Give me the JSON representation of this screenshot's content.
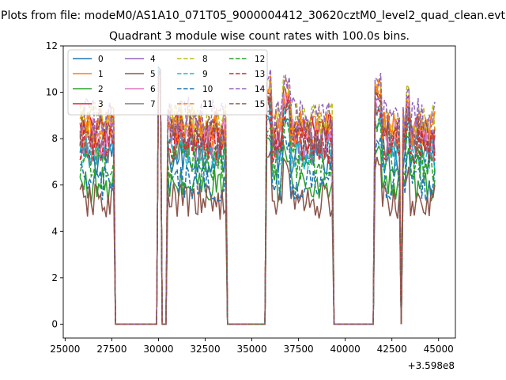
{
  "chart_data": {
    "type": "line",
    "suptitle": "Plots from file: modeM0/AS1A10_071T05_9000004412_30620cztM0_level2_quad_clean.evt",
    "title": "Quadrant 3 module wise count rates with 100.0s bins.",
    "xlabel": "",
    "ylabel": "",
    "x_offset_label": "+3.598e8",
    "xlim": [
      24900,
      45900
    ],
    "ylim": [
      -0.6,
      12
    ],
    "xticks": [
      25000,
      27500,
      30000,
      32500,
      35000,
      37500,
      40000,
      42500,
      45000
    ],
    "xtick_labels": [
      "25000",
      "27500",
      "30000",
      "32500",
      "35000",
      "37500",
      "40000",
      "42500",
      "45000"
    ],
    "yticks": [
      0,
      2,
      4,
      6,
      8,
      10,
      12
    ],
    "ytick_labels": [
      "0",
      "2",
      "4",
      "6",
      "8",
      "10",
      "12"
    ],
    "grid": false,
    "legend_position": "top-left",
    "legend_columns": 4,
    "bin_width_s": 100.0,
    "segments": [
      {
        "start": 25800,
        "end": 27600
      },
      {
        "start": 30000,
        "end": 30100
      },
      {
        "start": 30500,
        "end": 33600
      },
      {
        "start": 35800,
        "end": 36700
      },
      {
        "start": 36800,
        "end": 39300
      },
      {
        "start": 41600,
        "end": 42900
      },
      {
        "start": 43100,
        "end": 43200
      },
      {
        "start": 43300,
        "end": 44800
      }
    ],
    "series": [
      {
        "name": "0",
        "color": "#1f77b4",
        "dash": "solid",
        "level": 7.2
      },
      {
        "name": "1",
        "color": "#ff7f0e",
        "dash": "solid",
        "level": 8.6
      },
      {
        "name": "2",
        "color": "#2ca02c",
        "dash": "solid",
        "level": 6.0
      },
      {
        "name": "3",
        "color": "#d62728",
        "dash": "solid",
        "level": 8.3
      },
      {
        "name": "4",
        "color": "#9467bd",
        "dash": "solid",
        "level": 7.9
      },
      {
        "name": "5",
        "color": "#8c564b",
        "dash": "solid",
        "level": 5.3
      },
      {
        "name": "6",
        "color": "#e377c2",
        "dash": "solid",
        "level": 8.1
      },
      {
        "name": "7",
        "color": "#7f7f7f",
        "dash": "solid",
        "level": 7.6
      },
      {
        "name": "8",
        "color": "#bcbd22",
        "dash": "dashed",
        "level": 8.8
      },
      {
        "name": "9",
        "color": "#17becf",
        "dash": "dashed",
        "level": 7.4
      },
      {
        "name": "10",
        "color": "#1f77b4",
        "dash": "dashed",
        "level": 6.1
      },
      {
        "name": "11",
        "color": "#ff7f0e",
        "dash": "dashed",
        "level": 8.4
      },
      {
        "name": "12",
        "color": "#2ca02c",
        "dash": "dashed",
        "level": 7.0
      },
      {
        "name": "13",
        "color": "#d62728",
        "dash": "dashed",
        "level": 7.7
      },
      {
        "name": "14",
        "color": "#9467bd",
        "dash": "dashed",
        "level": 9.0
      },
      {
        "name": "15",
        "color": "#8c564b",
        "dash": "dashed",
        "level": 8.2
      }
    ]
  }
}
